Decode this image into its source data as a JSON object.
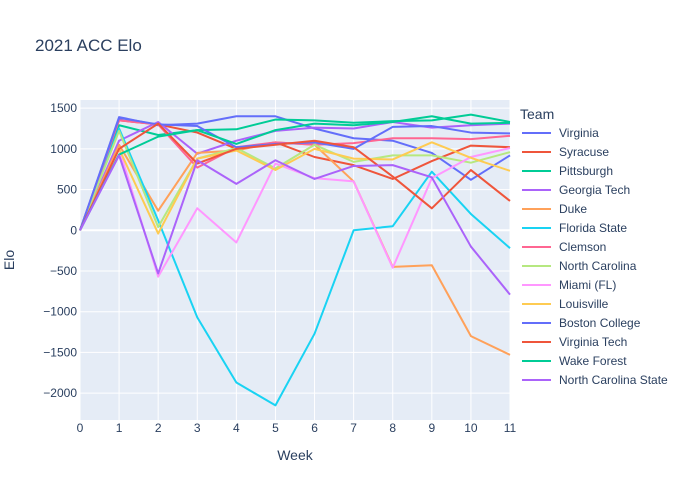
{
  "chart_data": {
    "type": "line",
    "title": "2021 ACC Elo",
    "xlabel": "Week",
    "ylabel": "Elo",
    "xlim": [
      0,
      11
    ],
    "ylim": [
      -2330,
      1600
    ],
    "x_ticks": [
      0,
      1,
      2,
      3,
      4,
      5,
      6,
      7,
      8,
      9,
      10,
      11
    ],
    "y_ticks": [
      1500,
      1000,
      500,
      0,
      -500,
      -1000,
      -1500,
      -2000
    ],
    "y_tick_labels": [
      "1500",
      "1000",
      "500",
      "0",
      "−500",
      "−1000",
      "−1500",
      "−2000"
    ],
    "grid": true,
    "legend_title": "Team",
    "legend_position": "right",
    "x": [
      0,
      1,
      2,
      3,
      4,
      5,
      6,
      7,
      8,
      9,
      10,
      11
    ],
    "series": [
      {
        "name": "Virginia",
        "color": "#636efa",
        "values": [
          0,
          1390,
          1290,
          1310,
          1400,
          1400,
          1250,
          1130,
          1100,
          950,
          620,
          920
        ]
      },
      {
        "name": "Syracuse",
        "color": "#ef553b",
        "values": [
          0,
          1350,
          1300,
          1200,
          1000,
          1080,
          900,
          800,
          630,
          850,
          1040,
          1020
        ]
      },
      {
        "name": "Pittsburgh",
        "color": "#00cc96",
        "values": [
          0,
          1290,
          1170,
          1230,
          1240,
          1360,
          1350,
          1320,
          1340,
          1350,
          1420,
          1330
        ]
      },
      {
        "name": "Georgia Tech",
        "color": "#ab63fa",
        "values": [
          0,
          1100,
          1330,
          940,
          1100,
          1220,
          1260,
          1250,
          1330,
          1260,
          1290,
          1310
        ]
      },
      {
        "name": "Duke",
        "color": "#ffa15a",
        "values": [
          0,
          1050,
          240,
          950,
          980,
          1080,
          1050,
          600,
          -450,
          -430,
          -1300,
          -1530
        ]
      },
      {
        "name": "Florida State",
        "color": "#19d3f3",
        "values": [
          0,
          1250,
          120,
          -1070,
          -1870,
          -2150,
          -1270,
          0,
          50,
          720,
          200,
          -220
        ]
      },
      {
        "name": "Clemson",
        "color": "#ff6692",
        "values": [
          0,
          1350,
          1300,
          770,
          1020,
          1080,
          1050,
          1070,
          1130,
          1130,
          1120,
          1160
        ]
      },
      {
        "name": "North Carolina",
        "color": "#b6e880",
        "values": [
          0,
          1220,
          40,
          880,
          1010,
          760,
          1050,
          840,
          920,
          920,
          830,
          960
        ]
      },
      {
        "name": "Miami (FL)",
        "color": "#ff97ff",
        "values": [
          0,
          1000,
          -570,
          270,
          -150,
          820,
          640,
          600,
          -460,
          640,
          900,
          1010
        ]
      },
      {
        "name": "Louisville",
        "color": "#fecb52",
        "values": [
          0,
          1000,
          -40,
          880,
          980,
          740,
          1000,
          880,
          870,
          1080,
          890,
          730
        ]
      },
      {
        "name": "Boston College",
        "color": "#636efa",
        "values": [
          0,
          1380,
          1300,
          1280,
          1020,
          1060,
          1080,
          1000,
          1270,
          1280,
          1200,
          1190
        ]
      },
      {
        "name": "Virginia Tech",
        "color": "#ef553b",
        "values": [
          0,
          1000,
          1310,
          820,
          1000,
          1050,
          1100,
          1020,
          660,
          270,
          740,
          360
        ]
      },
      {
        "name": "Wake Forest",
        "color": "#00cc96",
        "values": [
          0,
          930,
          1150,
          1230,
          1060,
          1230,
          1310,
          1290,
          1330,
          1400,
          1310,
          1320
        ]
      },
      {
        "name": "North Carolina State",
        "color": "#ab63fa",
        "values": [
          0,
          920,
          -530,
          860,
          570,
          860,
          630,
          790,
          800,
          650,
          -200,
          -790
        ]
      }
    ]
  }
}
